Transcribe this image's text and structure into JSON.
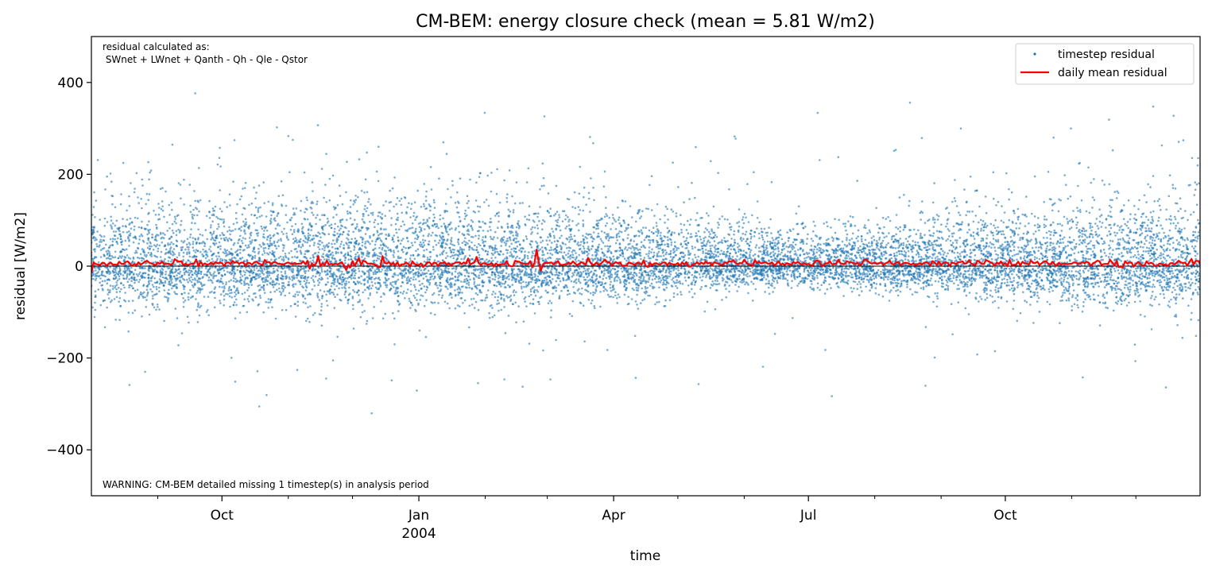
{
  "chart_data": {
    "type": "scatter",
    "title": "CM-BEM: energy closure check (mean = 5.81 W/m2)",
    "xlabel": "time",
    "ylabel": "residual [W/m2]",
    "ylim": [
      -500,
      500
    ],
    "xlim": [
      "2003-08-01",
      "2004-12-31"
    ],
    "yticks": [
      {
        "value": -400,
        "label": "−400"
      },
      {
        "value": -200,
        "label": "−200"
      },
      {
        "value": 0,
        "label": "0"
      },
      {
        "value": 200,
        "label": "200"
      },
      {
        "value": 400,
        "label": "400"
      }
    ],
    "xticks": [
      {
        "date": "2003-10-01",
        "label": "Oct"
      },
      {
        "date": "2004-01-01",
        "label": "Jan",
        "sublabel": "2004"
      },
      {
        "date": "2004-04-01",
        "label": "Apr"
      },
      {
        "date": "2004-07-01",
        "label": "Jul"
      },
      {
        "date": "2004-10-01",
        "label": "Oct"
      }
    ],
    "minor_ticks": [
      "2003-09-01",
      "2003-11-01",
      "2003-12-01",
      "2004-02-01",
      "2004-03-01",
      "2004-05-01",
      "2004-06-01",
      "2004-08-01",
      "2004-09-01",
      "2004-11-01",
      "2004-12-01"
    ],
    "grid": false,
    "zero_line": true,
    "legend_position": "top-right",
    "annotations": [
      "residual calculated as:",
      " SWnet + LWnet + Qanth - Qh - Qle - Qstor",
      "WARNING: CM-BEM detailed missing 1 timestep(s) in analysis period"
    ],
    "series": [
      {
        "name": "timestep residual",
        "kind": "scatter",
        "color": "#1f77b4",
        "spread_envelope": [
          {
            "date": "2003-08-01",
            "std": 95
          },
          {
            "date": "2003-10-01",
            "std": 88
          },
          {
            "date": "2003-12-01",
            "std": 92
          },
          {
            "date": "2004-01-15",
            "std": 90
          },
          {
            "date": "2004-03-01",
            "std": 82
          },
          {
            "date": "2004-05-01",
            "std": 62
          },
          {
            "date": "2004-07-01",
            "std": 48
          },
          {
            "date": "2004-08-15",
            "std": 60
          },
          {
            "date": "2004-10-01",
            "std": 78
          },
          {
            "date": "2004-12-31",
            "std": 92
          }
        ]
      },
      {
        "name": "daily mean residual",
        "kind": "line",
        "color": "#ff0000",
        "mean_level": 5.81,
        "samples": [
          {
            "date": "2003-08-01",
            "value": -15
          },
          {
            "date": "2003-08-10",
            "value": 8
          },
          {
            "date": "2003-11-15",
            "value": 22
          },
          {
            "date": "2003-11-28",
            "value": -8
          },
          {
            "date": "2003-12-15",
            "value": 22
          },
          {
            "date": "2004-01-28",
            "value": 20
          },
          {
            "date": "2004-02-25",
            "value": 36
          },
          {
            "date": "2004-02-27",
            "value": -10
          },
          {
            "date": "2004-03-20",
            "value": 18
          },
          {
            "date": "2004-12-27",
            "value": 16
          }
        ]
      }
    ]
  }
}
